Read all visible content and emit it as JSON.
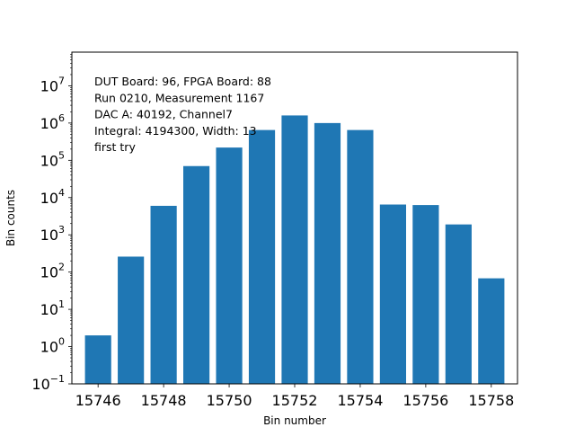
{
  "chart_data": {
    "type": "bar",
    "x": [
      15746,
      15747,
      15748,
      15749,
      15750,
      15751,
      15752,
      15753,
      15754,
      15755,
      15756,
      15757,
      15758
    ],
    "values": [
      2,
      260,
      6000,
      70000,
      220000,
      650000,
      1600000,
      1000000,
      650000,
      6500,
      6300,
      1900,
      68
    ],
    "xlabel": "Bin number",
    "ylabel": "Bin counts",
    "yscale": "log",
    "ylim": [
      0.1,
      80000000
    ],
    "xlim": [
      15745.2,
      15758.8
    ],
    "x_ticks": [
      "15746",
      "15748",
      "15750",
      "15752",
      "15754",
      "15756",
      "15758"
    ],
    "y_ticks": [
      {
        "base": "10",
        "exp": "−1"
      },
      {
        "base": "10",
        "exp": "0"
      },
      {
        "base": "10",
        "exp": "1"
      },
      {
        "base": "10",
        "exp": "2"
      },
      {
        "base": "10",
        "exp": "3"
      },
      {
        "base": "10",
        "exp": "4"
      },
      {
        "base": "10",
        "exp": "5"
      },
      {
        "base": "10",
        "exp": "6"
      },
      {
        "base": "10",
        "exp": "7"
      }
    ],
    "bar_color": "#1f77b4",
    "grid": false,
    "annotation_lines": [
      "DUT Board: 96, FPGA Board: 88",
      "Run 0210, Measurement 1167",
      "DAC A: 40192, Channel7",
      "Integral: 4194300, Width: 13",
      "first try"
    ]
  }
}
